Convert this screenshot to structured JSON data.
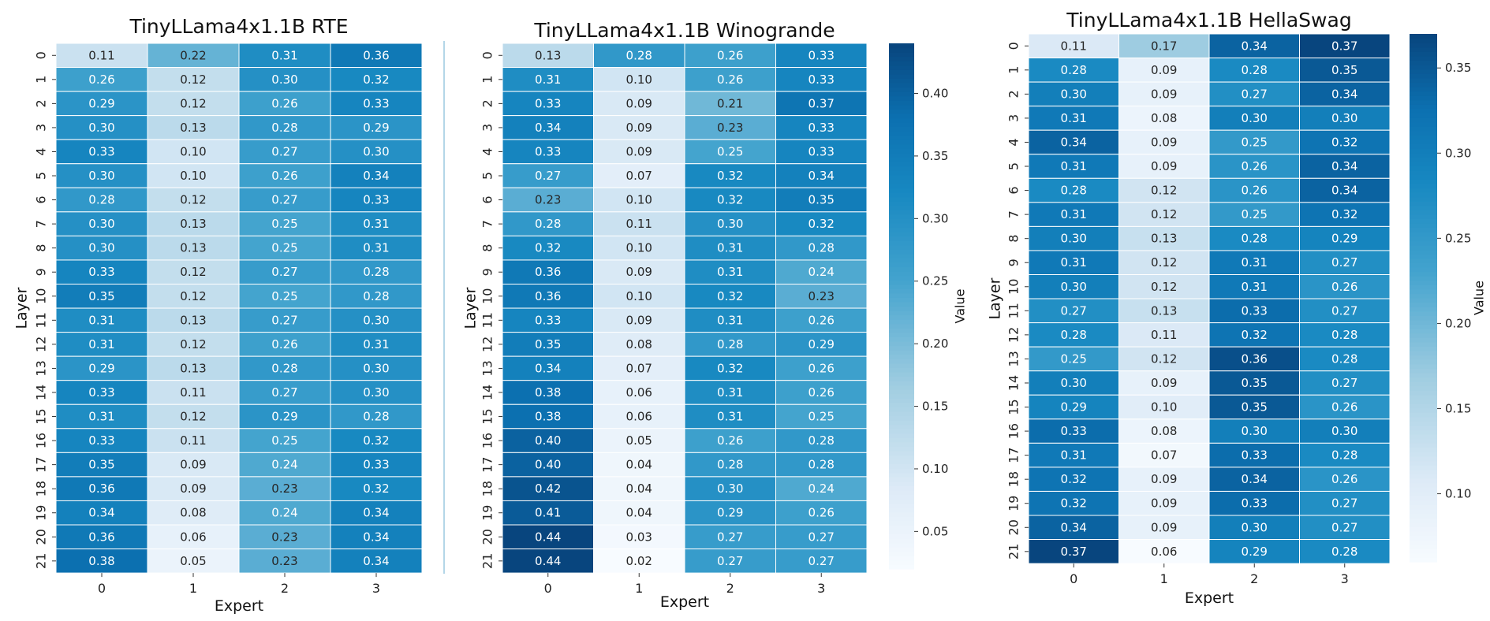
{
  "chart_data": [
    {
      "type": "heatmap",
      "title": "TinyLLama4x1.1B RTE",
      "xlabel": "Expert",
      "ylabel": "Layer",
      "x_ticks": [
        "0",
        "1",
        "2",
        "3"
      ],
      "y_ticks": [
        "0",
        "1",
        "2",
        "3",
        "4",
        "5",
        "6",
        "7",
        "8",
        "9",
        "10",
        "11",
        "12",
        "13",
        "14",
        "15",
        "16",
        "17",
        "18",
        "19",
        "20",
        "21"
      ],
      "colorbar": null,
      "values": [
        [
          "0.11",
          "0.22",
          "0.31",
          "0.36"
        ],
        [
          "0.26",
          "0.12",
          "0.30",
          "0.32"
        ],
        [
          "0.29",
          "0.12",
          "0.26",
          "0.33"
        ],
        [
          "0.30",
          "0.13",
          "0.28",
          "0.29"
        ],
        [
          "0.33",
          "0.10",
          "0.27",
          "0.30"
        ],
        [
          "0.30",
          "0.10",
          "0.26",
          "0.34"
        ],
        [
          "0.28",
          "0.12",
          "0.27",
          "0.33"
        ],
        [
          "0.30",
          "0.13",
          "0.25",
          "0.31"
        ],
        [
          "0.30",
          "0.13",
          "0.25",
          "0.31"
        ],
        [
          "0.33",
          "0.12",
          "0.27",
          "0.28"
        ],
        [
          "0.35",
          "0.12",
          "0.25",
          "0.28"
        ],
        [
          "0.31",
          "0.13",
          "0.27",
          "0.30"
        ],
        [
          "0.31",
          "0.12",
          "0.26",
          "0.31"
        ],
        [
          "0.29",
          "0.13",
          "0.28",
          "0.30"
        ],
        [
          "0.33",
          "0.11",
          "0.27",
          "0.30"
        ],
        [
          "0.31",
          "0.12",
          "0.29",
          "0.28"
        ],
        [
          "0.33",
          "0.11",
          "0.25",
          "0.32"
        ],
        [
          "0.35",
          "0.09",
          "0.24",
          "0.33"
        ],
        [
          "0.36",
          "0.09",
          "0.23",
          "0.32"
        ],
        [
          "0.34",
          "0.08",
          "0.24",
          "0.34"
        ],
        [
          "0.36",
          "0.06",
          "0.23",
          "0.34"
        ],
        [
          "0.38",
          "0.05",
          "0.23",
          "0.34"
        ]
      ],
      "color_range": [
        0.02,
        0.44
      ]
    },
    {
      "type": "heatmap",
      "title": "TinyLLama4x1.1B Winogrande",
      "xlabel": "Expert",
      "ylabel": "Layer",
      "x_ticks": [
        "0",
        "1",
        "2",
        "3"
      ],
      "y_ticks": [
        "0",
        "1",
        "2",
        "3",
        "4",
        "5",
        "6",
        "7",
        "8",
        "9",
        "10",
        "11",
        "12",
        "13",
        "14",
        "15",
        "16",
        "17",
        "18",
        "19",
        "20",
        "21"
      ],
      "colorbar": {
        "label": "Value",
        "ticks": [
          "0.05",
          "0.10",
          "0.15",
          "0.20",
          "0.25",
          "0.30",
          "0.35",
          "0.40"
        ],
        "tick_values": [
          0.05,
          0.1,
          0.15,
          0.2,
          0.25,
          0.3,
          0.35,
          0.4
        ],
        "range": [
          0.02,
          0.44
        ]
      },
      "values": [
        [
          "0.13",
          "0.28",
          "0.26",
          "0.33"
        ],
        [
          "0.31",
          "0.10",
          "0.26",
          "0.33"
        ],
        [
          "0.33",
          "0.09",
          "0.21",
          "0.37"
        ],
        [
          "0.34",
          "0.09",
          "0.23",
          "0.33"
        ],
        [
          "0.33",
          "0.09",
          "0.25",
          "0.33"
        ],
        [
          "0.27",
          "0.07",
          "0.32",
          "0.34"
        ],
        [
          "0.23",
          "0.10",
          "0.32",
          "0.35"
        ],
        [
          "0.28",
          "0.11",
          "0.30",
          "0.32"
        ],
        [
          "0.32",
          "0.10",
          "0.31",
          "0.28"
        ],
        [
          "0.36",
          "0.09",
          "0.31",
          "0.24"
        ],
        [
          "0.36",
          "0.10",
          "0.32",
          "0.23"
        ],
        [
          "0.33",
          "0.09",
          "0.31",
          "0.26"
        ],
        [
          "0.35",
          "0.08",
          "0.28",
          "0.29"
        ],
        [
          "0.34",
          "0.07",
          "0.32",
          "0.26"
        ],
        [
          "0.38",
          "0.06",
          "0.31",
          "0.26"
        ],
        [
          "0.38",
          "0.06",
          "0.31",
          "0.25"
        ],
        [
          "0.40",
          "0.05",
          "0.26",
          "0.28"
        ],
        [
          "0.40",
          "0.04",
          "0.28",
          "0.28"
        ],
        [
          "0.42",
          "0.04",
          "0.30",
          "0.24"
        ],
        [
          "0.41",
          "0.04",
          "0.29",
          "0.26"
        ],
        [
          "0.44",
          "0.03",
          "0.27",
          "0.27"
        ],
        [
          "0.44",
          "0.02",
          "0.27",
          "0.27"
        ]
      ],
      "color_range": [
        0.02,
        0.44
      ]
    },
    {
      "type": "heatmap",
      "title": "TinyLLama4x1.1B HellaSwag",
      "xlabel": "Expert",
      "ylabel": "Layer",
      "x_ticks": [
        "0",
        "1",
        "2",
        "3"
      ],
      "y_ticks": [
        "0",
        "1",
        "2",
        "3",
        "4",
        "5",
        "6",
        "7",
        "8",
        "9",
        "10",
        "11",
        "12",
        "13",
        "14",
        "15",
        "16",
        "17",
        "18",
        "19",
        "20",
        "21"
      ],
      "colorbar": {
        "label": "Value",
        "ticks": [
          "0.10",
          "0.15",
          "0.20",
          "0.25",
          "0.30",
          "0.35"
        ],
        "tick_values": [
          0.1,
          0.15,
          0.2,
          0.25,
          0.3,
          0.35
        ],
        "range": [
          0.06,
          0.37
        ]
      },
      "values": [
        [
          "0.11",
          "0.17",
          "0.34",
          "0.37"
        ],
        [
          "0.28",
          "0.09",
          "0.28",
          "0.35"
        ],
        [
          "0.30",
          "0.09",
          "0.27",
          "0.34"
        ],
        [
          "0.31",
          "0.08",
          "0.30",
          "0.30"
        ],
        [
          "0.34",
          "0.09",
          "0.25",
          "0.32"
        ],
        [
          "0.31",
          "0.09",
          "0.26",
          "0.34"
        ],
        [
          "0.28",
          "0.12",
          "0.26",
          "0.34"
        ],
        [
          "0.31",
          "0.12",
          "0.25",
          "0.32"
        ],
        [
          "0.30",
          "0.13",
          "0.28",
          "0.29"
        ],
        [
          "0.31",
          "0.12",
          "0.31",
          "0.27"
        ],
        [
          "0.30",
          "0.12",
          "0.31",
          "0.26"
        ],
        [
          "0.27",
          "0.13",
          "0.33",
          "0.27"
        ],
        [
          "0.28",
          "0.11",
          "0.32",
          "0.28"
        ],
        [
          "0.25",
          "0.12",
          "0.36",
          "0.28"
        ],
        [
          "0.30",
          "0.09",
          "0.35",
          "0.27"
        ],
        [
          "0.29",
          "0.10",
          "0.35",
          "0.26"
        ],
        [
          "0.33",
          "0.08",
          "0.30",
          "0.30"
        ],
        [
          "0.31",
          "0.07",
          "0.33",
          "0.28"
        ],
        [
          "0.32",
          "0.09",
          "0.34",
          "0.26"
        ],
        [
          "0.32",
          "0.09",
          "0.33",
          "0.27"
        ],
        [
          "0.34",
          "0.09",
          "0.30",
          "0.27"
        ],
        [
          "0.37",
          "0.06",
          "0.29",
          "0.28"
        ]
      ],
      "color_range": [
        0.06,
        0.37
      ]
    }
  ]
}
